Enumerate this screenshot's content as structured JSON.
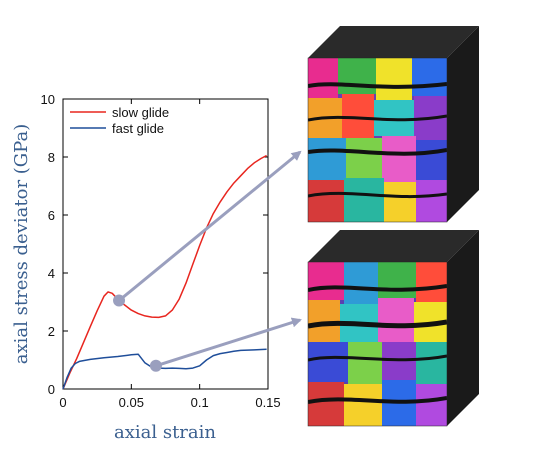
{
  "chart_data": {
    "type": "line",
    "xlabel": "axial strain",
    "ylabel": "axial stress deviator (GPa)",
    "xlim": [
      0,
      0.15
    ],
    "ylim": [
      0,
      10
    ],
    "x_ticks": [
      "0",
      "0.05",
      "0.1",
      "0.15"
    ],
    "y_ticks": [
      "0",
      "2",
      "4",
      "6",
      "8",
      "10"
    ],
    "grid": false,
    "legend_position": "top-left",
    "series": [
      {
        "name": "slow glide",
        "color": "#e8261f",
        "x": [
          0,
          0.005,
          0.01,
          0.015,
          0.02,
          0.025,
          0.03,
          0.033,
          0.036,
          0.04,
          0.045,
          0.05,
          0.055,
          0.06,
          0.065,
          0.07,
          0.075,
          0.08,
          0.085,
          0.09,
          0.095,
          0.1,
          0.105,
          0.11,
          0.115,
          0.12,
          0.125,
          0.13,
          0.135,
          0.14,
          0.145,
          0.149
        ],
        "y": [
          0,
          0.55,
          1.05,
          1.6,
          2.15,
          2.7,
          3.2,
          3.35,
          3.3,
          3.1,
          2.9,
          2.72,
          2.6,
          2.52,
          2.48,
          2.47,
          2.52,
          2.72,
          3.1,
          3.65,
          4.3,
          4.95,
          5.55,
          6.05,
          6.45,
          6.8,
          7.1,
          7.35,
          7.6,
          7.8,
          7.95,
          8.05
        ]
      },
      {
        "name": "fast glide",
        "color": "#1f4e9a",
        "x": [
          0,
          0.003,
          0.006,
          0.009,
          0.012,
          0.02,
          0.03,
          0.04,
          0.05,
          0.055,
          0.06,
          0.065,
          0.07,
          0.075,
          0.08,
          0.085,
          0.09,
          0.095,
          0.1,
          0.105,
          0.11,
          0.115,
          0.12,
          0.125,
          0.13,
          0.14,
          0.149
        ],
        "y": [
          0,
          0.4,
          0.72,
          0.88,
          0.95,
          1.02,
          1.08,
          1.12,
          1.18,
          1.2,
          0.9,
          0.75,
          0.72,
          0.71,
          0.72,
          0.71,
          0.7,
          0.72,
          0.8,
          1.0,
          1.15,
          1.22,
          1.26,
          1.3,
          1.33,
          1.35,
          1.37
        ]
      }
    ],
    "annotations": [
      {
        "series": "slow glide",
        "x": 0.041,
        "y": 3.05,
        "points_to": "top cube"
      },
      {
        "series": "fast glide",
        "x": 0.068,
        "y": 0.8,
        "points_to": "bottom cube"
      }
    ]
  }
}
